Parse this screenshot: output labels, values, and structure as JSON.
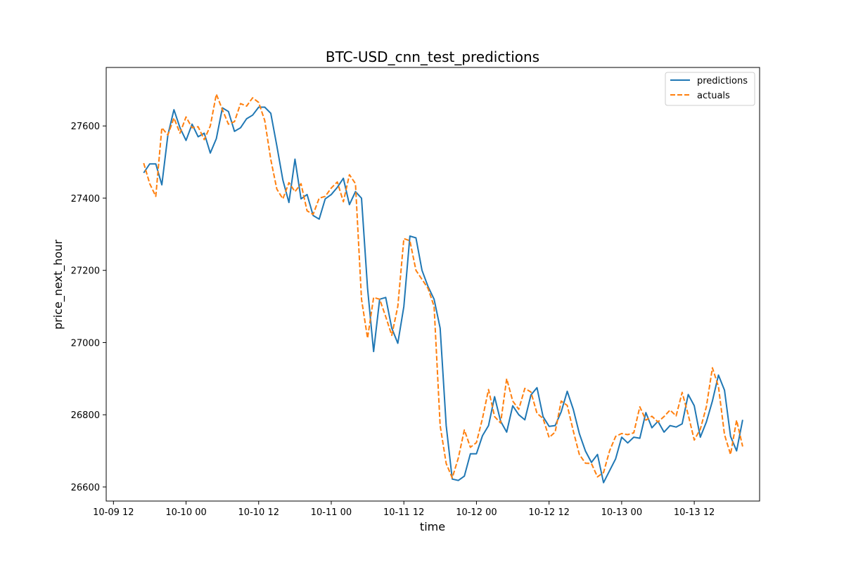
{
  "chart_data": {
    "type": "line",
    "title": "BTC-USD_cnn_test_predictions",
    "xlabel": "time",
    "ylabel": "price_next_hour",
    "x_ticks": [
      {
        "label": "10-09 12",
        "hour": 12
      },
      {
        "label": "10-10 00",
        "hour": 24
      },
      {
        "label": "10-10 12",
        "hour": 36
      },
      {
        "label": "10-11 00",
        "hour": 48
      },
      {
        "label": "10-11 12",
        "hour": 60
      },
      {
        "label": "10-12 00",
        "hour": 72
      },
      {
        "label": "10-12 12",
        "hour": 84
      },
      {
        "label": "10-13 00",
        "hour": 96
      },
      {
        "label": "10-13 12",
        "hour": 108
      }
    ],
    "y_ticks": [
      26600,
      26800,
      27000,
      27200,
      27400,
      27600
    ],
    "xlim": [
      10.8,
      118.8
    ],
    "ylim": [
      26561,
      27762
    ],
    "grid": false,
    "legend_position": "top-right",
    "x": [
      17,
      18,
      19,
      20,
      21,
      22,
      23,
      24,
      25,
      26,
      27,
      28,
      29,
      30,
      31,
      32,
      33,
      34,
      35,
      36,
      37,
      38,
      39,
      40,
      41,
      42,
      43,
      44,
      45,
      46,
      47,
      48,
      49,
      50,
      51,
      52,
      53,
      54,
      55,
      56,
      57,
      58,
      59,
      60,
      61,
      62,
      63,
      64,
      65,
      66,
      67,
      68,
      69,
      70,
      71,
      72,
      73,
      74,
      75,
      76,
      77,
      78,
      79,
      80,
      81,
      82,
      83,
      84,
      85,
      86,
      87,
      88,
      89,
      90,
      91,
      92,
      93,
      94,
      95,
      96,
      97,
      98,
      99,
      100,
      101,
      102,
      103,
      104,
      105,
      106,
      107,
      108,
      109,
      110,
      111,
      112,
      113,
      114,
      115,
      116
    ],
    "series": [
      {
        "name": "predictions",
        "color": "#1f77b4",
        "dash": "solid",
        "values": [
          27470,
          27495,
          27495,
          27437,
          27575,
          27645,
          27595,
          27560,
          27605,
          27570,
          27580,
          27525,
          27565,
          27650,
          27640,
          27585,
          27595,
          27620,
          27630,
          27652,
          27652,
          27635,
          27545,
          27450,
          27388,
          27508,
          27398,
          27410,
          27352,
          27342,
          27398,
          27410,
          27430,
          27455,
          27382,
          27418,
          27400,
          27150,
          26975,
          27120,
          27125,
          27040,
          26998,
          27100,
          27295,
          27290,
          27200,
          27155,
          27120,
          27040,
          26770,
          26622,
          26618,
          26630,
          26692,
          26692,
          26742,
          26770,
          26850,
          26782,
          26752,
          26825,
          26800,
          26786,
          26855,
          26875,
          26795,
          26768,
          26770,
          26808,
          26865,
          26815,
          26748,
          26700,
          26668,
          26690,
          26612,
          26645,
          26678,
          26738,
          26722,
          26738,
          26735,
          26806,
          26764,
          26782,
          26752,
          26770,
          26766,
          26775,
          26856,
          26825,
          26738,
          26780,
          26838,
          26910,
          26868,
          26740,
          26700,
          26786
        ]
      },
      {
        "name": "actuals",
        "color": "#ff7f0e",
        "dash": "dashed",
        "values": [
          27497,
          27440,
          27405,
          27595,
          27575,
          27622,
          27580,
          27625,
          27595,
          27598,
          27562,
          27600,
          27688,
          27645,
          27605,
          27612,
          27662,
          27655,
          27678,
          27665,
          27615,
          27507,
          27425,
          27398,
          27443,
          27418,
          27440,
          27365,
          27355,
          27400,
          27405,
          27428,
          27445,
          27390,
          27465,
          27440,
          27120,
          27012,
          27125,
          27120,
          27072,
          27020,
          27100,
          27288,
          27282,
          27200,
          27175,
          27150,
          27100,
          26770,
          26665,
          26625,
          26680,
          26758,
          26710,
          26723,
          26790,
          26870,
          26795,
          26777,
          26900,
          26838,
          26815,
          26873,
          26863,
          26804,
          26790,
          26737,
          26752,
          26838,
          26826,
          26755,
          26690,
          26666,
          26665,
          26628,
          26640,
          26700,
          26740,
          26748,
          26745,
          26750,
          26822,
          26785,
          26796,
          26780,
          26795,
          26813,
          26797,
          26862,
          26800,
          26730,
          26760,
          26822,
          26930,
          26878,
          26745,
          26690,
          26785,
          26712
        ]
      }
    ]
  }
}
